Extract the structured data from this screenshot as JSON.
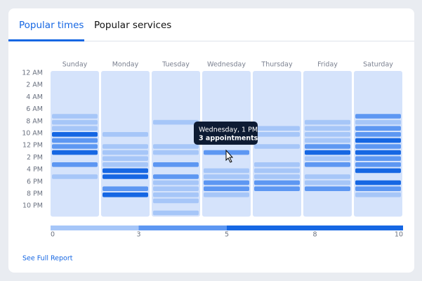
{
  "tabs": [
    "Popular times",
    "Popular services"
  ],
  "hour_labels": [
    "12 AM",
    "2 AM",
    "4 AM",
    "6 AM",
    "8 AM",
    "10 AM",
    "12 PM",
    "2 PM",
    "4 PM",
    "6 PM",
    "8 PM",
    "10 PM"
  ],
  "days": [
    {
      "name": "Sunday",
      "values": [
        null,
        null,
        null,
        null,
        null,
        null,
        null,
        2,
        2,
        2,
        7,
        4,
        4,
        7,
        null,
        4,
        null,
        2,
        null,
        null,
        null,
        null,
        null,
        null
      ]
    },
    {
      "name": "Monday",
      "values": [
        null,
        null,
        null,
        null,
        null,
        null,
        null,
        null,
        null,
        null,
        2,
        null,
        2,
        2,
        2,
        2,
        7,
        7,
        null,
        4,
        7,
        null,
        null,
        null
      ]
    },
    {
      "name": "Tuesday",
      "values": [
        null,
        null,
        null,
        null,
        null,
        null,
        null,
        null,
        2,
        null,
        null,
        null,
        2,
        2,
        null,
        4,
        null,
        4,
        2,
        2,
        2,
        2,
        null,
        2
      ]
    },
    {
      "name": "Wednesday",
      "values": [
        null,
        null,
        null,
        null,
        null,
        null,
        null,
        null,
        null,
        null,
        null,
        null,
        null,
        3,
        null,
        null,
        2,
        2,
        4,
        4,
        2,
        null,
        null,
        null
      ]
    },
    {
      "name": "Thursday",
      "values": [
        null,
        null,
        null,
        null,
        null,
        null,
        null,
        null,
        null,
        2,
        2,
        null,
        2,
        null,
        null,
        2,
        2,
        2,
        4,
        4,
        null,
        null,
        null,
        null
      ]
    },
    {
      "name": "Friday",
      "values": [
        null,
        null,
        null,
        null,
        null,
        null,
        null,
        null,
        2,
        2,
        2,
        2,
        4,
        7,
        2,
        4,
        null,
        2,
        2,
        4,
        null,
        null,
        null,
        null
      ]
    },
    {
      "name": "Saturday",
      "values": [
        null,
        null,
        null,
        null,
        null,
        null,
        null,
        4,
        2,
        4,
        4,
        7,
        4,
        7,
        4,
        4,
        7,
        null,
        7,
        4,
        2,
        null,
        null,
        null
      ]
    }
  ],
  "legend": {
    "ticks": [
      0,
      3,
      5,
      8,
      10
    ],
    "colors": [
      "#a6c6f8",
      "#5d97f2",
      "#1667e3"
    ]
  },
  "tooltip": {
    "title": "Wednesday, 1 PM",
    "text": "3 appointments"
  },
  "link": "See Full Report"
}
